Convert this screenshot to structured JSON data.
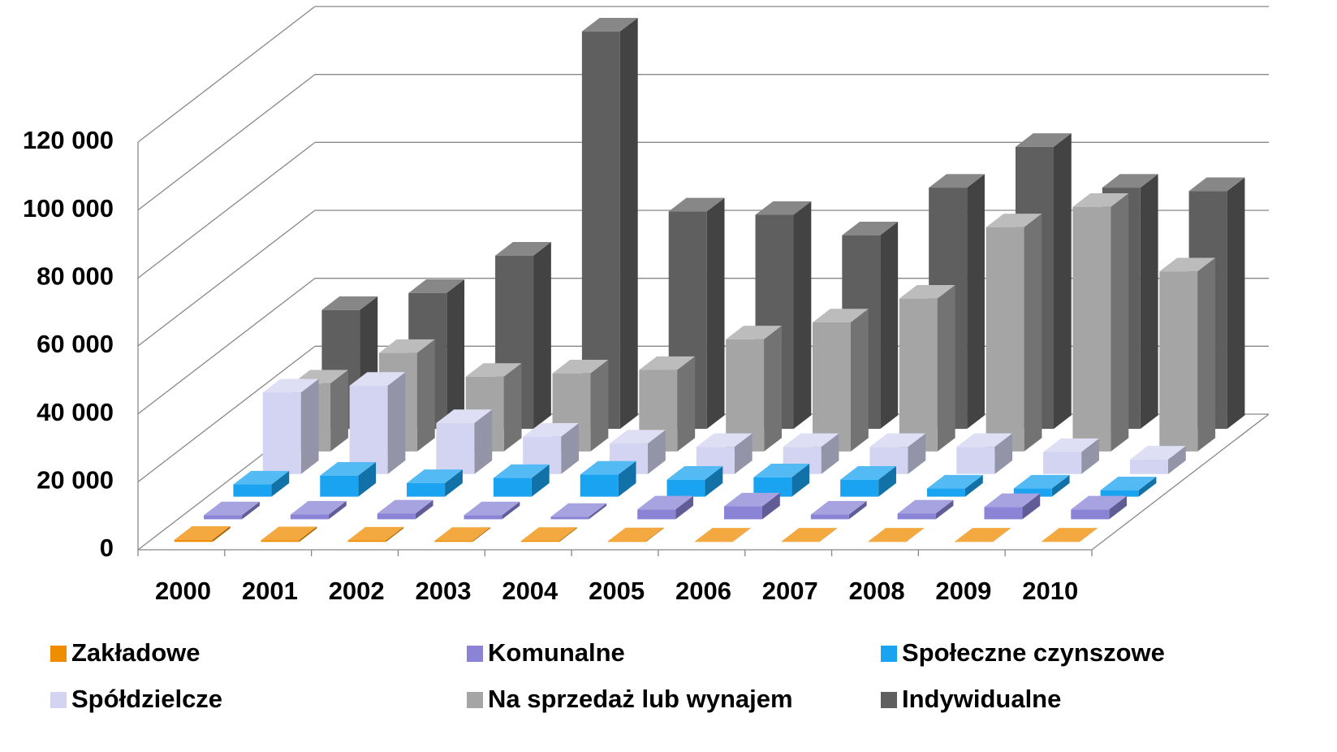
{
  "chart_data": {
    "type": "bar3d",
    "categories": [
      "2000",
      "2001",
      "2002",
      "2003",
      "2004",
      "2005",
      "2006",
      "2007",
      "2008",
      "2009",
      "2010"
    ],
    "series": [
      {
        "name": "Zakładowe",
        "color": "#f08c00",
        "values": [
          600,
          500,
          400,
          300,
          300,
          200,
          100,
          100,
          100,
          100,
          100
        ]
      },
      {
        "name": "Komunalne",
        "color": "#8a83d6",
        "values": [
          1200,
          1400,
          1700,
          1200,
          700,
          2900,
          3800,
          1400,
          1700,
          3600,
          2900
        ]
      },
      {
        "name": "Społeczne czynszowe",
        "color": "#1aa3f0",
        "values": [
          3600,
          6200,
          4000,
          5500,
          6500,
          5000,
          5700,
          5000,
          2400,
          2400,
          1900
        ]
      },
      {
        "name": "Spółdzielcze",
        "color": "#d3d3f2",
        "values": [
          24000,
          26000,
          15000,
          11000,
          9000,
          8000,
          8000,
          8000,
          8000,
          6500,
          4300
        ]
      },
      {
        "name": "Na sprzedaż lub wynajem",
        "color": "#a5a5a5",
        "values": [
          20000,
          29000,
          22000,
          23000,
          24000,
          33000,
          38000,
          45000,
          66000,
          72000,
          53000
        ]
      },
      {
        "name": "Indywidualne",
        "color": "#5f5f5f",
        "values": [
          35000,
          40000,
          51000,
          117000,
          64000,
          63000,
          57000,
          71000,
          83000,
          71000,
          70000
        ]
      }
    ],
    "ylim": [
      0,
      120000
    ],
    "yticks": [
      0,
      {
        "value": 20000,
        "label": "20 000"
      },
      {
        "value": 40000,
        "label": "40 000"
      },
      {
        "value": 60000,
        "label": "60 000"
      },
      {
        "value": 80000,
        "label": "80 000"
      },
      {
        "value": 100000,
        "label": "100 000"
      },
      {
        "value": 120000,
        "label": "120 000"
      }
    ],
    "grid": true
  }
}
